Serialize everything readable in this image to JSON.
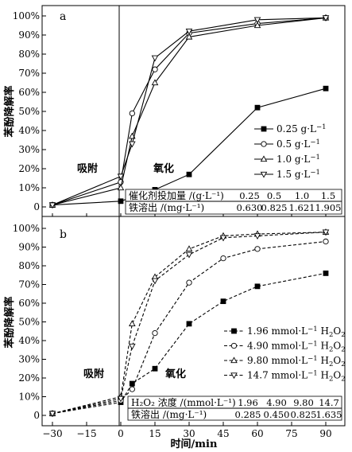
{
  "chart_data": [
    {
      "type": "line",
      "panel_label": "a",
      "ylabel": "苯酚降解率",
      "ylim": [
        0,
        100
      ],
      "y_ticks": [
        "0",
        "10%",
        "20%",
        "30%",
        "40%",
        "50%",
        "60%",
        "70%",
        "80%",
        "90%",
        "100%"
      ],
      "xlim": [
        -30,
        90
      ],
      "regions": [
        "吸附",
        "氧化"
      ],
      "grid": false,
      "legend_position": "right",
      "series": [
        {
          "name": "0.25 g·L⁻¹",
          "marker": "square-filled",
          "style": "solid",
          "x": [
            -30,
            0,
            5,
            15,
            30,
            60,
            90
          ],
          "y": [
            1,
            3,
            5,
            9,
            17,
            52,
            62
          ]
        },
        {
          "name": "0.5 g·L⁻¹",
          "marker": "circle-open",
          "style": "solid",
          "x": [
            -30,
            0,
            5,
            15,
            30,
            60,
            90
          ],
          "y": [
            1,
            13,
            49,
            72,
            91,
            96,
            99
          ]
        },
        {
          "name": "1.0 g·L⁻¹",
          "marker": "triangle-up-open",
          "style": "solid",
          "x": [
            -30,
            0,
            5,
            15,
            30,
            60,
            90
          ],
          "y": [
            1,
            10,
            37,
            65,
            89,
            95,
            99
          ]
        },
        {
          "name": "1.5 g·L⁻¹",
          "marker": "triangle-down-open",
          "style": "solid",
          "x": [
            -30,
            0,
            5,
            15,
            30,
            60,
            90
          ],
          "y": [
            1,
            16,
            33,
            78,
            92,
            98,
            99
          ]
        }
      ],
      "table": {
        "rows": [
          {
            "label": "催化剂投加量 /(g·L⁻¹)",
            "values": [
              "0.25",
              "0.5",
              "1.0",
              "1.5"
            ]
          },
          {
            "label": "铁溶出 /(mg·L⁻¹)",
            "values": [
              "0.630",
              "0.825",
              "1.621",
              "1.905"
            ]
          }
        ]
      }
    },
    {
      "type": "line",
      "panel_label": "b",
      "ylabel": "苯酚降解率",
      "ylim": [
        0,
        100
      ],
      "y_ticks": [
        "0",
        "10%",
        "20%",
        "30%",
        "40%",
        "50%",
        "60%",
        "70%",
        "80%",
        "90%",
        "100%"
      ],
      "xlim": [
        -30,
        90
      ],
      "x_ticks": [
        "−30",
        "−15",
        "0",
        "15",
        "30",
        "45",
        "60",
        "75",
        "90"
      ],
      "xlabel": "时间/min",
      "regions": [
        "吸附",
        "氧化"
      ],
      "grid": false,
      "legend_position": "right",
      "series": [
        {
          "name": "1.96 mmol·L⁻¹ H₂O₂",
          "marker": "square-filled",
          "style": "dashed",
          "x": [
            -30,
            0,
            5,
            15,
            30,
            45,
            60,
            90
          ],
          "y": [
            1,
            7,
            17,
            25,
            49,
            61,
            69,
            76
          ]
        },
        {
          "name": "4.90 mmol·L⁻¹ H₂O₂",
          "marker": "circle-open",
          "style": "dashed",
          "x": [
            -30,
            0,
            5,
            15,
            30,
            45,
            60,
            90
          ],
          "y": [
            1,
            8,
            14,
            44,
            71,
            84,
            89,
            93
          ]
        },
        {
          "name": "9.80 mmol·L⁻¹ H₂O₂",
          "marker": "triangle-up-open",
          "style": "dashed",
          "x": [
            -30,
            0,
            5,
            15,
            30,
            45,
            60,
            90
          ],
          "y": [
            1,
            10,
            49,
            74,
            89,
            96,
            97,
            98
          ]
        },
        {
          "name": "14.7 mmol·L⁻¹ H₂O₂",
          "marker": "triangle-down-open",
          "style": "dashed",
          "x": [
            -30,
            0,
            5,
            15,
            30,
            45,
            60,
            90
          ],
          "y": [
            1,
            9,
            37,
            72,
            86,
            95,
            96,
            98
          ]
        }
      ],
      "table": {
        "rows": [
          {
            "label": "H₂O₂ 浓度 /(mmol·L⁻¹)",
            "values": [
              "1.96",
              "4.90",
              "9.80",
              "14.7"
            ]
          },
          {
            "label": "铁溶出 /(mg·L⁻¹)",
            "values": [
              "0.285",
              "0.450",
              "0.825",
              "1.635"
            ]
          }
        ]
      }
    }
  ]
}
